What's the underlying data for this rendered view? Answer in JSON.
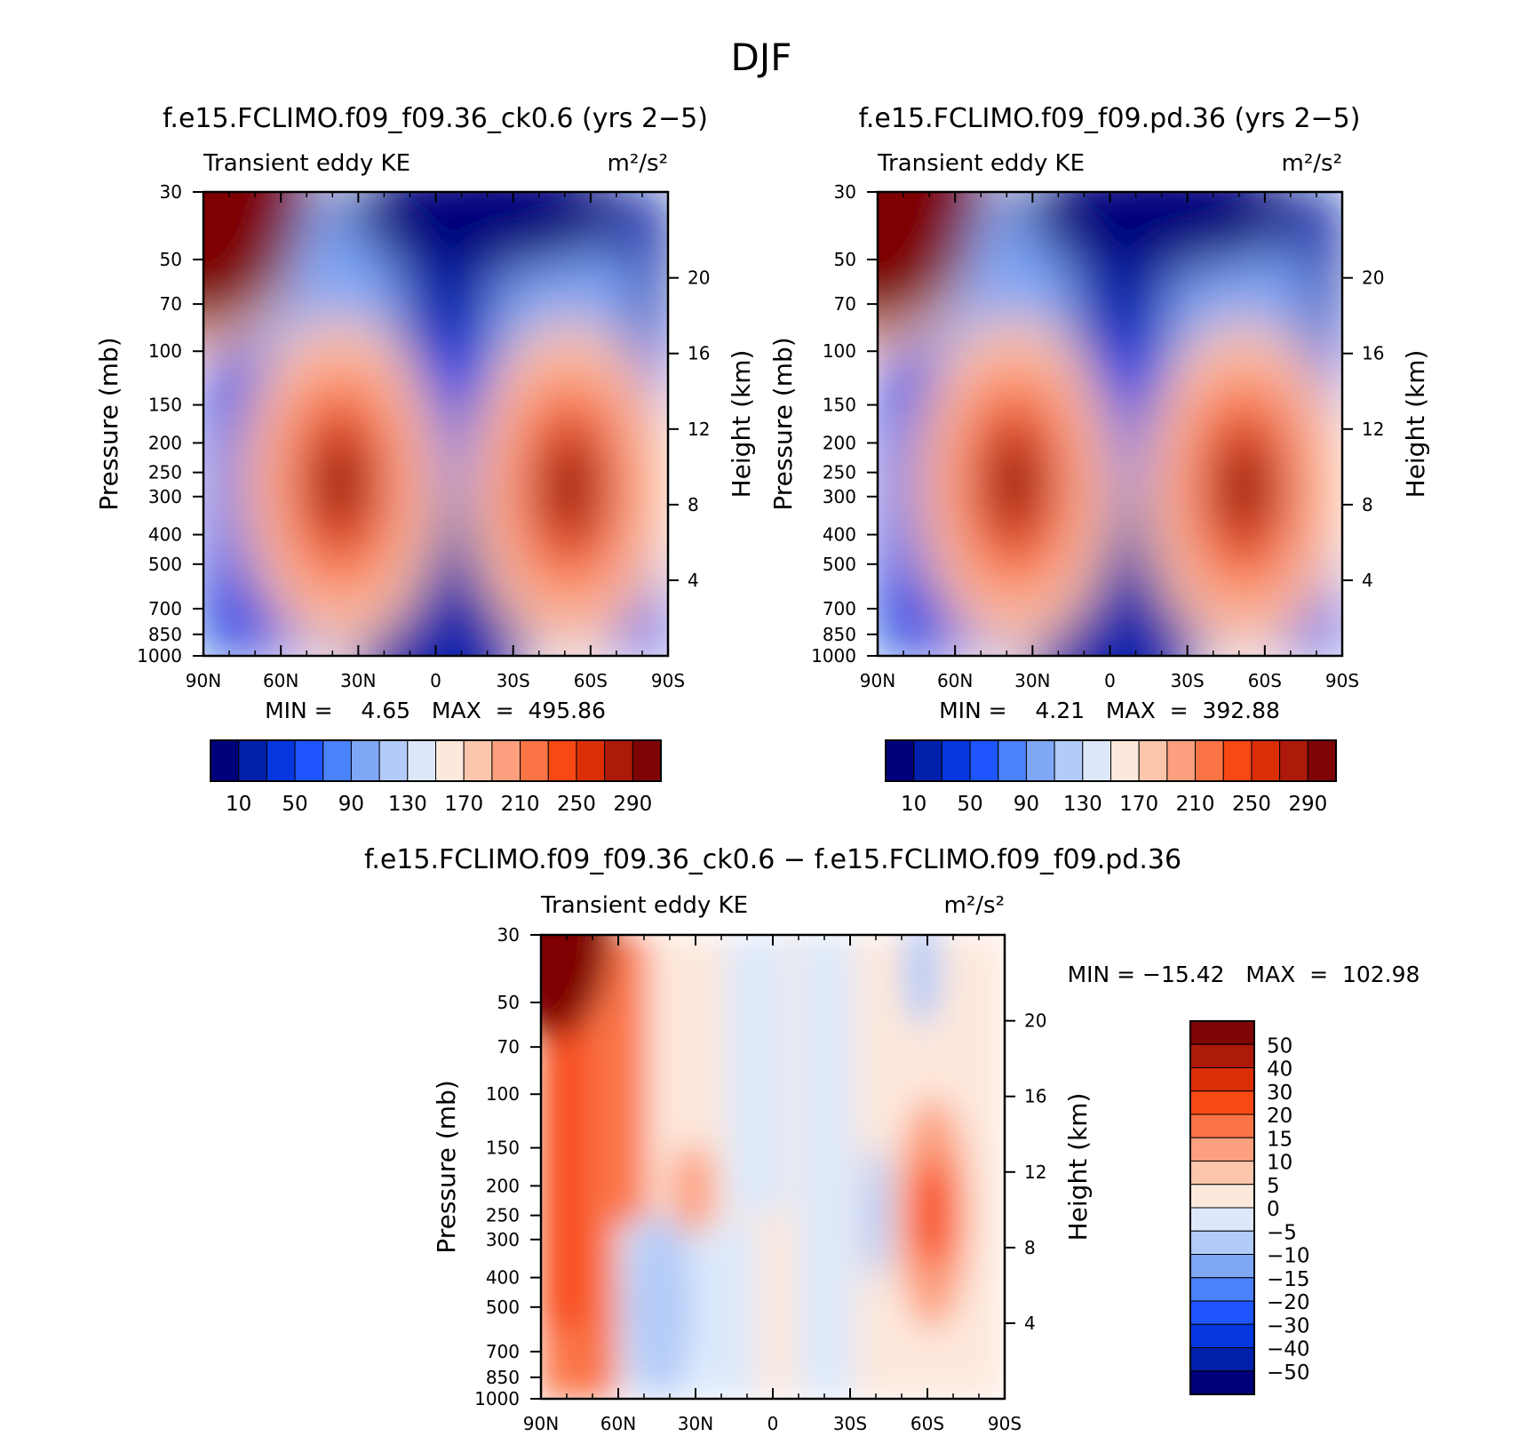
{
  "figure": {
    "title": "DJF"
  },
  "colors": {
    "abs_palette": [
      "#00007a",
      "#0020ab",
      "#0437e0",
      "#1f55fe",
      "#4a82f9",
      "#7fa7f6",
      "#b2cbf8",
      "#dde9fb",
      "#fde8dc",
      "#fcc6ac",
      "#fca07f",
      "#fa7446",
      "#f84914",
      "#db2e07",
      "#ad1a0a",
      "#7e0405"
    ],
    "diff_palette": [
      "#00007a",
      "#0020ab",
      "#0437e0",
      "#1f55fe",
      "#4a82f9",
      "#7fa7f6",
      "#b2cbf8",
      "#dde9fb",
      "#fde8dc",
      "#fcc6ac",
      "#fca07f",
      "#fa7446",
      "#f84914",
      "#db2e07",
      "#ad1a0a",
      "#7e0405"
    ]
  },
  "chart_data": [
    {
      "type": "heatmap",
      "title": "f.e15.FCLIMO.f09_f09.36_ck0.6 (yrs 2−5)",
      "left_string": "Transient eddy KE",
      "right_string": "m²/s²",
      "ylabel": "Pressure (mb)",
      "ylabel_right": "Height (km)",
      "x_ticks": [
        "90N",
        "60N",
        "30N",
        "0",
        "30S",
        "60S",
        "90S"
      ],
      "y_ticks": [
        "30",
        "50",
        "70",
        "100",
        "150",
        "200",
        "250",
        "300",
        "400",
        "500",
        "700",
        "850",
        "1000"
      ],
      "y_right_ticks": [
        "4",
        "8",
        "12",
        "16",
        "20"
      ],
      "min_max": "MIN =    4.65   MAX  =  495.86",
      "min": 4.65,
      "max": 495.86,
      "colorbar_labels": [
        "10",
        "50",
        "90",
        "130",
        "170",
        "210",
        "250",
        "290"
      ],
      "features": [
        {
          "lat": 90,
          "p": 30,
          "value": 320
        },
        {
          "lat": 37,
          "p": 270,
          "value": 300
        },
        {
          "lat": -52,
          "p": 280,
          "value": 305
        }
      ]
    },
    {
      "type": "heatmap",
      "title": "f.e15.FCLIMO.f09_f09.pd.36 (yrs 2−5)",
      "left_string": "Transient eddy KE",
      "right_string": "m²/s²",
      "ylabel": "Pressure (mb)",
      "ylabel_right": "Height (km)",
      "x_ticks": [
        "90N",
        "60N",
        "30N",
        "0",
        "30S",
        "60S",
        "90S"
      ],
      "y_ticks": [
        "30",
        "50",
        "70",
        "100",
        "150",
        "200",
        "250",
        "300",
        "400",
        "500",
        "700",
        "850",
        "1000"
      ],
      "y_right_ticks": [
        "4",
        "8",
        "12",
        "16",
        "20"
      ],
      "min_max": "MIN =    4.21   MAX  =  392.88",
      "min": 4.21,
      "max": 392.88,
      "colorbar_labels": [
        "10",
        "50",
        "90",
        "130",
        "170",
        "210",
        "250",
        "290"
      ],
      "features": [
        {
          "lat": 90,
          "p": 30,
          "value": 310
        },
        {
          "lat": 37,
          "p": 270,
          "value": 290
        },
        {
          "lat": -52,
          "p": 280,
          "value": 300
        }
      ]
    },
    {
      "type": "heatmap",
      "title": "f.e15.FCLIMO.f09_f09.36_ck0.6 − f.e15.FCLIMO.f09_f09.pd.36",
      "left_string": "Transient eddy KE",
      "right_string": "m²/s²",
      "ylabel": "Pressure (mb)",
      "ylabel_right": "Height (km)",
      "x_ticks": [
        "90N",
        "60N",
        "30N",
        "0",
        "30S",
        "60S",
        "90S"
      ],
      "y_ticks": [
        "30",
        "50",
        "70",
        "100",
        "150",
        "200",
        "250",
        "300",
        "400",
        "500",
        "700",
        "850",
        "1000"
      ],
      "y_right_ticks": [
        "4",
        "8",
        "12",
        "16",
        "20"
      ],
      "min_max": "MIN = −15.42   MAX  =  102.98",
      "min": -15.42,
      "max": 102.98,
      "colorbar_labels": [
        "50",
        "40",
        "30",
        "20",
        "15",
        "10",
        "5",
        "0",
        "−5",
        "−10",
        "−15",
        "−20",
        "−30",
        "−40",
        "−50"
      ]
    }
  ]
}
